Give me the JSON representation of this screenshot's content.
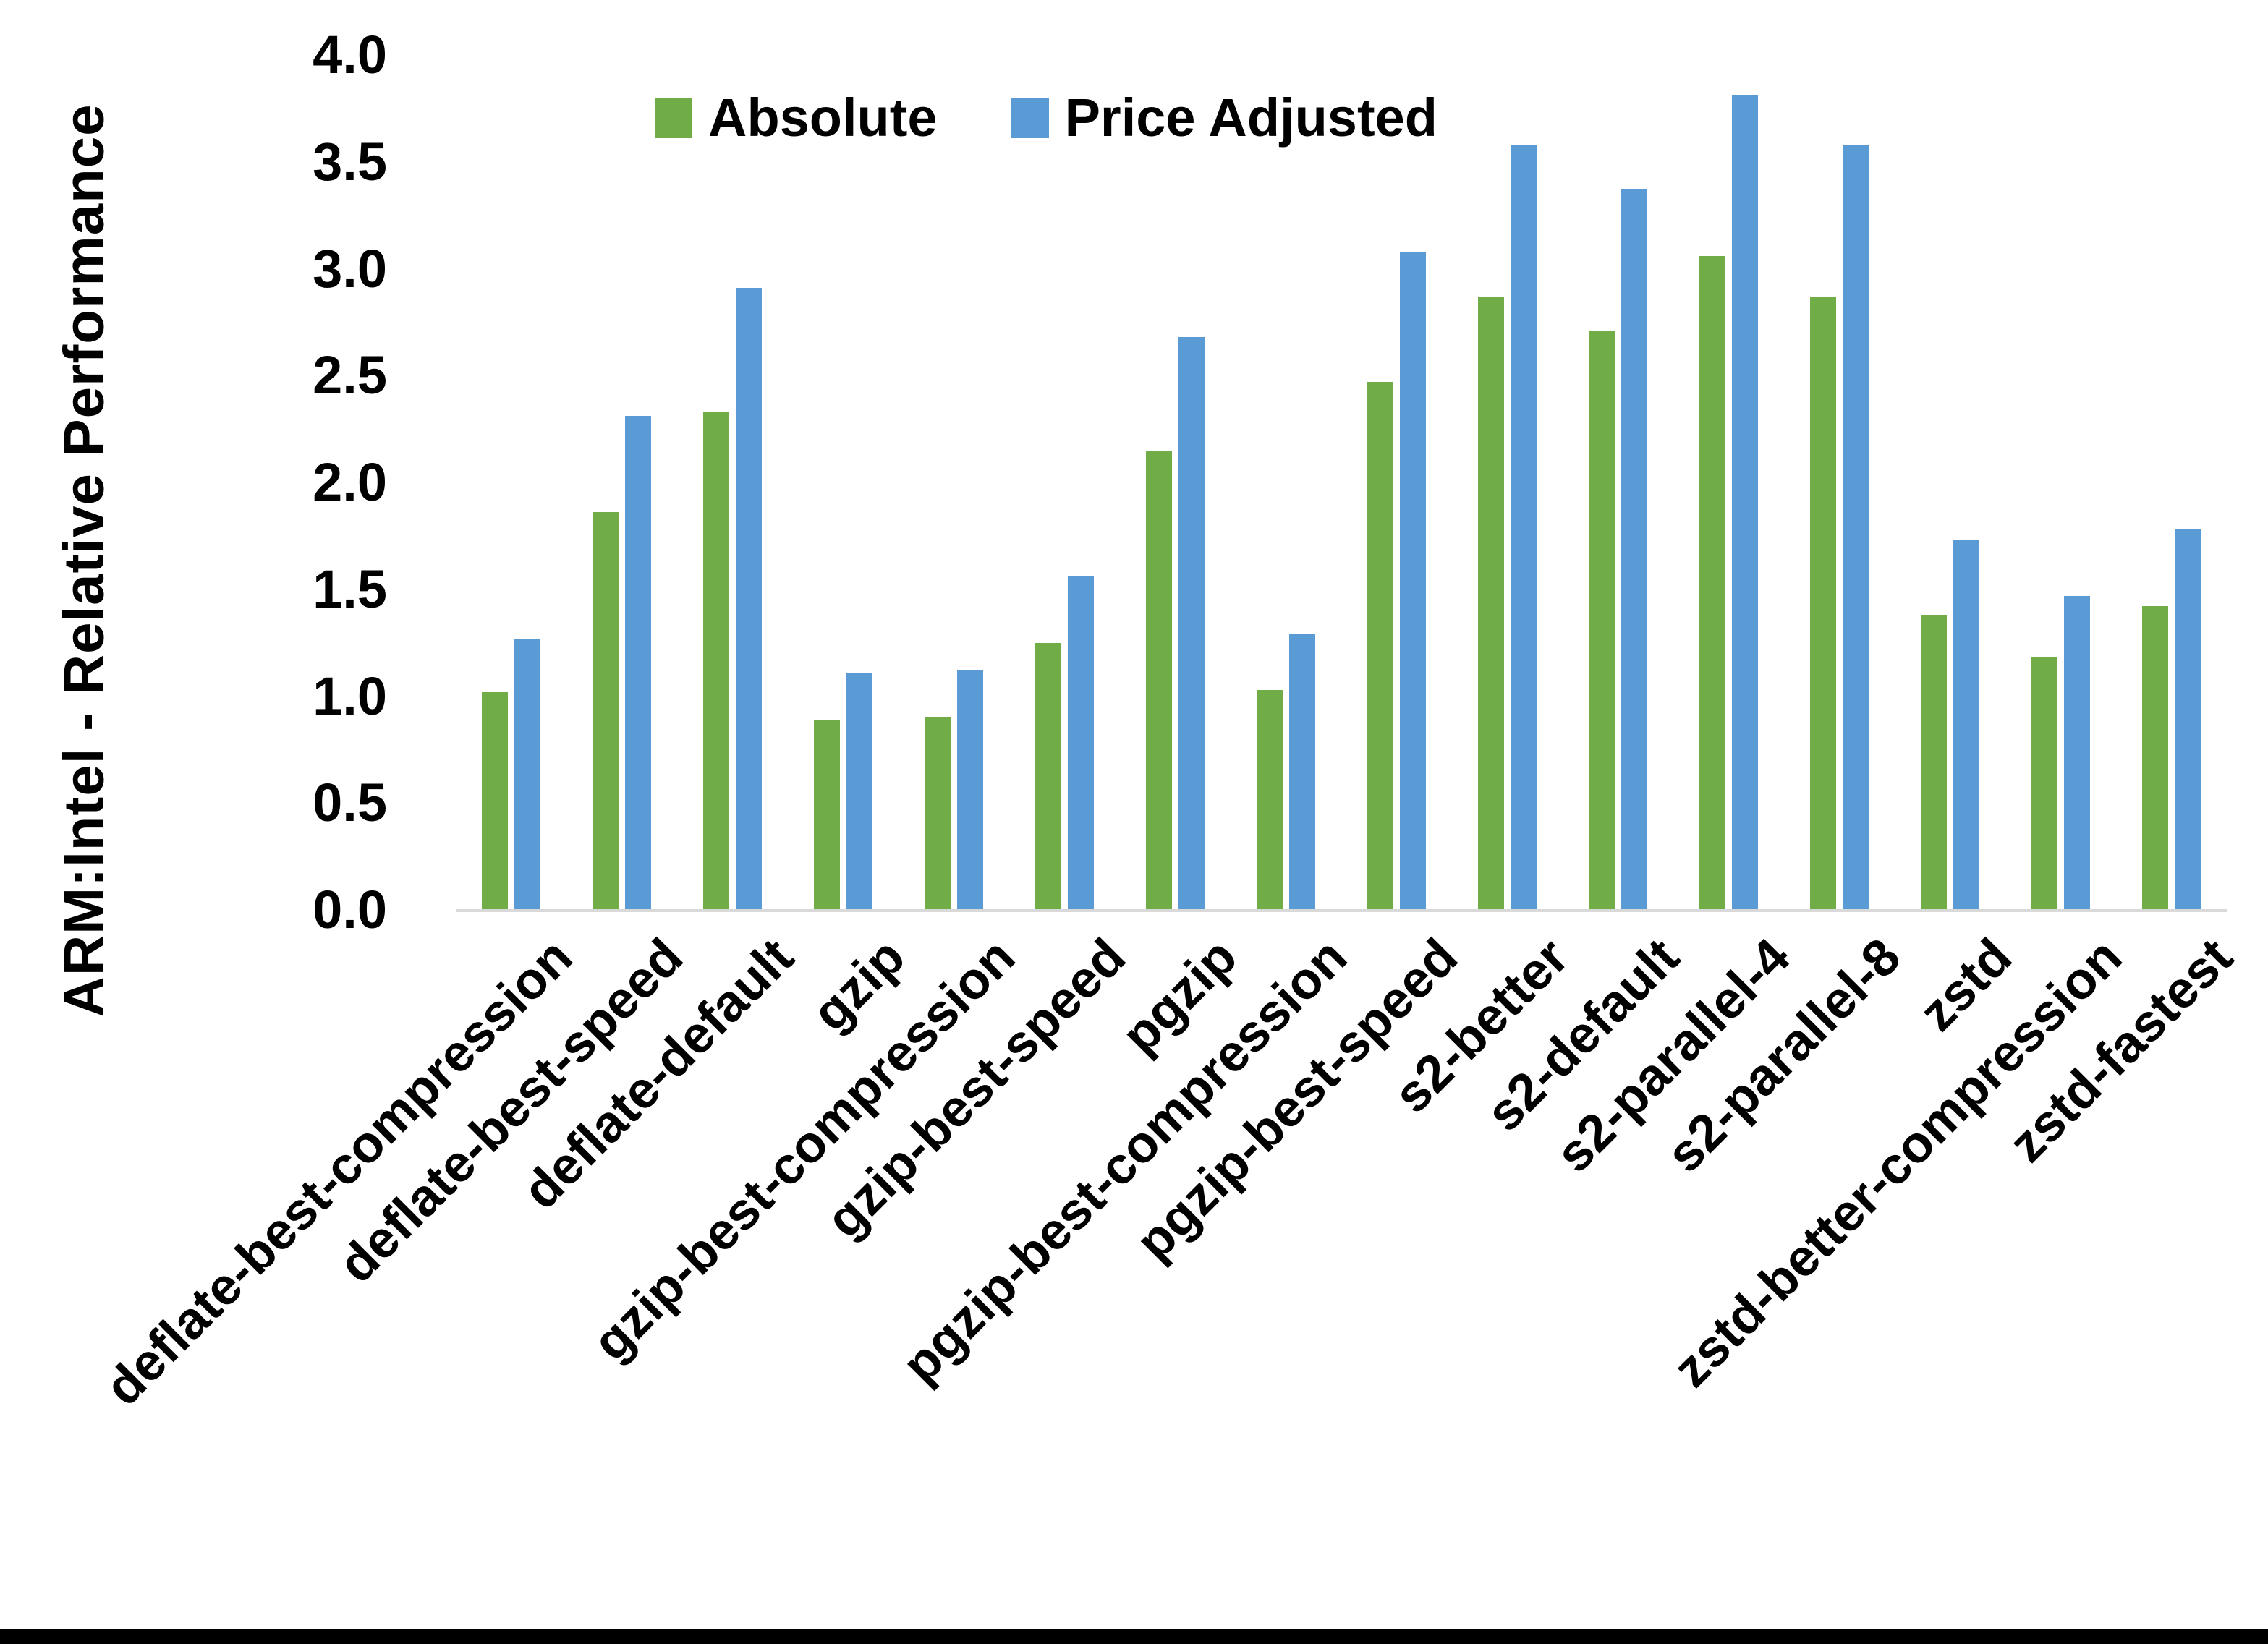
{
  "figure": {
    "background": "#ffffff",
    "bottom_border_color": "#000000"
  },
  "chart_data": {
    "type": "bar",
    "title": "",
    "xlabel": "",
    "ylabel": "ARM:Intel - Relative Performance",
    "ylim": [
      0,
      4
    ],
    "ytick_step": 0.5,
    "yticks": [
      "4.0",
      "3.5",
      "3.0",
      "2.5",
      "2.0",
      "1.5",
      "1.0",
      "0.5",
      "0.0"
    ],
    "grid": false,
    "legend_position": "top-center",
    "axis_line_color": "#d9d9d9",
    "categories": [
      "deflate-best-compression",
      "deflate-best-speed",
      "deflate-default",
      "gzip",
      "gzip-best-compression",
      "gzip-best-speed",
      "pgzip",
      "pgzip-best-compression",
      "pgzip-best-speed",
      "s2-better",
      "s2-default",
      "s2-parallel-4",
      "s2-parallel-8",
      "zstd",
      "zstd-better-compression",
      "zstd-fastest"
    ],
    "series": [
      {
        "name": "Absolute",
        "color": "#70AD47",
        "values": [
          1.02,
          1.86,
          2.33,
          0.89,
          0.9,
          1.25,
          2.15,
          1.03,
          2.47,
          2.87,
          2.71,
          3.06,
          2.87,
          1.38,
          1.18,
          1.42
        ]
      },
      {
        "name": "Price Adjusted",
        "color": "#5B9BD5",
        "values": [
          1.27,
          2.31,
          2.91,
          1.11,
          1.12,
          1.56,
          2.68,
          1.29,
          3.08,
          3.58,
          3.37,
          3.81,
          3.58,
          1.73,
          1.47,
          1.78
        ]
      }
    ]
  }
}
